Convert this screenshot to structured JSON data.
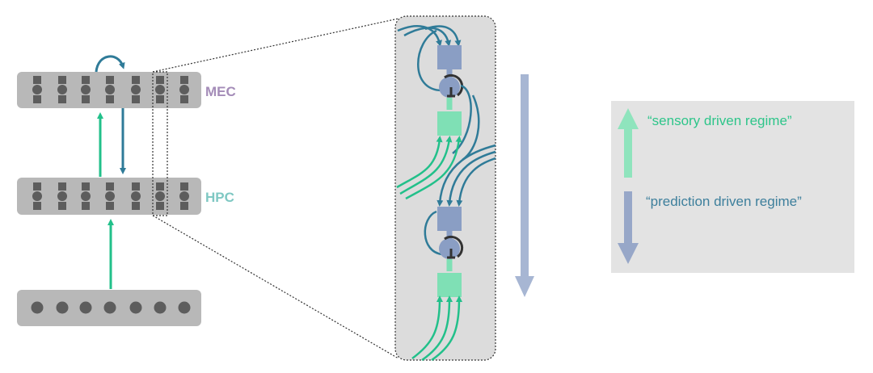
{
  "layers": {
    "mec": {
      "label": "MEC",
      "color": "#a48cb8"
    },
    "hpc": {
      "label": "HPC",
      "color": "#7fc8c3"
    },
    "input": {
      "label": ""
    }
  },
  "legend": {
    "sensory": {
      "label": "“sensory driven regime”",
      "color": "#2ec58a"
    },
    "prediction": {
      "label": "“prediction driven regime”",
      "color": "#3d7f9c"
    }
  },
  "colors": {
    "green": "#22c08a",
    "teal": "#2f7b98",
    "box": "#b8b8b8",
    "unit": "#5d5d5d",
    "inset_bg": "#dcdcdc",
    "blue_unit": "#8a9ec4",
    "green_unit": "#7fe0b5",
    "legend_bg": "#e3e3e3",
    "big_arrow": "#a7b6d3"
  },
  "icons": [
    "inhibitory-neuron-icon",
    "excitatory-unit-icon"
  ]
}
